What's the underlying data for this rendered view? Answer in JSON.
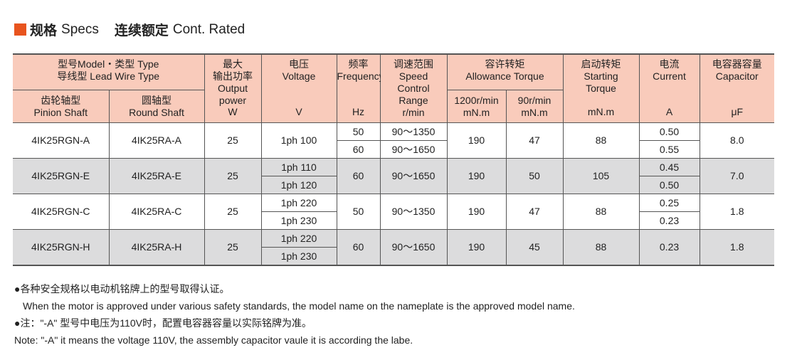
{
  "title": {
    "cn1": "规格",
    "en1": "Specs",
    "cn2": "连续额定",
    "en2": "Cont. Rated",
    "accent": "#e8541e"
  },
  "header": {
    "model_type": [
      "型号Model・类型 Type",
      "导线型 Lead Wire Type"
    ],
    "pinion": [
      "齿轮轴型",
      "Pinion Shaft"
    ],
    "round": [
      "圆轴型",
      "Round Shaft"
    ],
    "power": [
      "最大",
      "输出功率",
      "Output",
      "power"
    ],
    "power_unit": "W",
    "voltage": [
      "电压",
      "Voltage"
    ],
    "voltage_unit": "V",
    "frequency": [
      "频率",
      "Frequency"
    ],
    "frequency_unit": "Hz",
    "speed": [
      "调速范围",
      "Speed",
      "Control",
      "Range",
      "r/min"
    ],
    "allowance": [
      "容许转矩",
      "Allowance Torque"
    ],
    "t1200": [
      "1200r/min",
      "mN.m"
    ],
    "t90": [
      "90r/min",
      "mN.m"
    ],
    "starting": [
      "启动转矩",
      "Starting",
      "Torque"
    ],
    "starting_unit": "mN.m",
    "current": [
      "电流",
      "Current"
    ],
    "current_unit": "A",
    "capacitor": [
      "电容器容量",
      "Capacitor"
    ],
    "capacitor_unit": "μF"
  },
  "rows": [
    {
      "pinion": "4IK25RGN-A",
      "round": "4IK25RA-A",
      "power": "25",
      "voltage": [
        "1ph 100"
      ],
      "frequency": [
        "50",
        "60"
      ],
      "speed": [
        "90～1350",
        "90～1650"
      ],
      "t1200": "190",
      "t90": "47",
      "starting": "88",
      "current": [
        "0.50",
        "0.55"
      ],
      "capacitor": "8.0"
    },
    {
      "pinion": "4IK25RGN-E",
      "round": "4IK25RA-E",
      "power": "25",
      "voltage": [
        "1ph 110",
        "1ph 120"
      ],
      "frequency": [
        "60"
      ],
      "speed": [
        "90～1650"
      ],
      "t1200": "190",
      "t90": "50",
      "starting": "105",
      "current": [
        "0.45",
        "0.50"
      ],
      "capacitor": "7.0"
    },
    {
      "pinion": "4IK25RGN-C",
      "round": "4IK25RA-C",
      "power": "25",
      "voltage": [
        "1ph 220",
        "1ph 230"
      ],
      "frequency": [
        "50"
      ],
      "speed": [
        "90～1350"
      ],
      "t1200": "190",
      "t90": "47",
      "starting": "88",
      "current": [
        "0.25",
        "0.23"
      ],
      "capacitor": "1.8"
    },
    {
      "pinion": "4IK25RGN-H",
      "round": "4IK25RA-H",
      "power": "25",
      "voltage": [
        "1ph 220",
        "1ph 230"
      ],
      "frequency": [
        "60"
      ],
      "speed": [
        "90～1650"
      ],
      "t1200": "190",
      "t90": "45",
      "starting": "88",
      "current": [
        "0.23"
      ],
      "capacitor": "1.8"
    }
  ],
  "notes": [
    "●各种安全规格以电动机铭牌上的型号取得认证。",
    "When the motor is approved under various safety standards, the model name on the nameplate is the approved model name.",
    "●注：\"-A\" 型号中电压为110V时，配置电容器容量以实际铭牌为准。",
    "Note: \"-A\" it means the voltage 110V, the assembly capacitor vaule it is according the labe."
  ]
}
